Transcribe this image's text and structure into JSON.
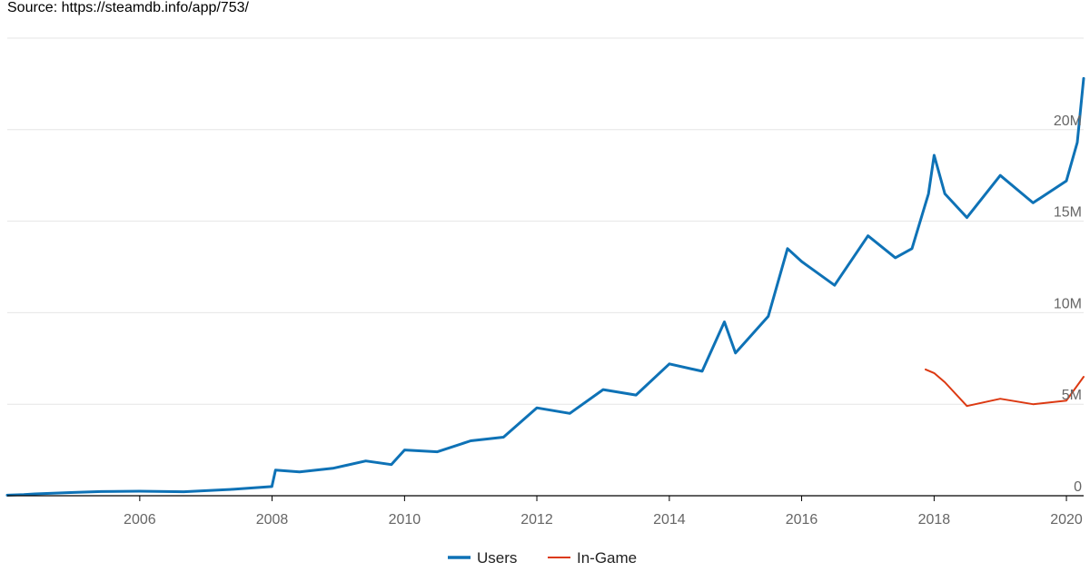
{
  "source_text": "Source: https://steamdb.info/app/753/",
  "chart_data": {
    "type": "line",
    "x_axis": {
      "type": "date",
      "ticks": [
        "2006",
        "2008",
        "2010",
        "2012",
        "2014",
        "2016",
        "2018",
        "2020"
      ],
      "range": [
        "2004-01-01",
        "2020-04-05"
      ]
    },
    "y_axis": {
      "ticks": [
        "0",
        "5M",
        "10M",
        "15M",
        "20M"
      ],
      "range": [
        0,
        25000000
      ]
    },
    "grid": true,
    "legend": "bottom-center",
    "series": [
      {
        "name": "Users",
        "color": "#0e72b6",
        "points": [
          [
            "2004-01-01",
            30000
          ],
          [
            "2004-04-01",
            60000
          ],
          [
            "2004-06-01",
            100000
          ],
          [
            "2005-01-01",
            180000
          ],
          [
            "2005-06-01",
            230000
          ],
          [
            "2005-12-31",
            250000
          ],
          [
            "2006-09-01",
            220000
          ],
          [
            "2007-06-01",
            350000
          ],
          [
            "2007-12-31",
            500000
          ],
          [
            "2008-01-20",
            1400000
          ],
          [
            "2008-06-01",
            1300000
          ],
          [
            "2008-12-01",
            1500000
          ],
          [
            "2009-06-01",
            1900000
          ],
          [
            "2009-10-20",
            1700000
          ],
          [
            "2010-01-01",
            2500000
          ],
          [
            "2010-07-01",
            2400000
          ],
          [
            "2011-01-01",
            3000000
          ],
          [
            "2011-07-01",
            3200000
          ],
          [
            "2012-01-01",
            4800000
          ],
          [
            "2012-07-01",
            4500000
          ],
          [
            "2013-01-01",
            5800000
          ],
          [
            "2013-07-01",
            5500000
          ],
          [
            "2014-01-01",
            7200000
          ],
          [
            "2014-07-01",
            6800000
          ],
          [
            "2014-11-01",
            9500000
          ],
          [
            "2015-01-01",
            7800000
          ],
          [
            "2015-07-01",
            9800000
          ],
          [
            "2015-10-15",
            13500000
          ],
          [
            "2016-01-01",
            12800000
          ],
          [
            "2016-07-01",
            11500000
          ],
          [
            "2017-01-01",
            14200000
          ],
          [
            "2017-06-01",
            13000000
          ],
          [
            "2017-09-01",
            13500000
          ],
          [
            "2017-12-01",
            16500000
          ],
          [
            "2018-01-01",
            18600000
          ],
          [
            "2018-03-01",
            16500000
          ],
          [
            "2018-07-01",
            15200000
          ],
          [
            "2019-01-01",
            17500000
          ],
          [
            "2019-07-01",
            16000000
          ],
          [
            "2020-01-01",
            17200000
          ],
          [
            "2020-03-01",
            19300000
          ],
          [
            "2020-04-05",
            22800000
          ]
        ]
      },
      {
        "name": "In-Game",
        "color": "#dc3912",
        "points": [
          [
            "2017-11-15",
            6900000
          ],
          [
            "2018-01-01",
            6700000
          ],
          [
            "2018-03-01",
            6200000
          ],
          [
            "2018-07-01",
            4900000
          ],
          [
            "2019-01-01",
            5300000
          ],
          [
            "2019-07-01",
            5000000
          ],
          [
            "2020-01-01",
            5200000
          ],
          [
            "2020-04-05",
            6500000
          ]
        ]
      }
    ]
  }
}
